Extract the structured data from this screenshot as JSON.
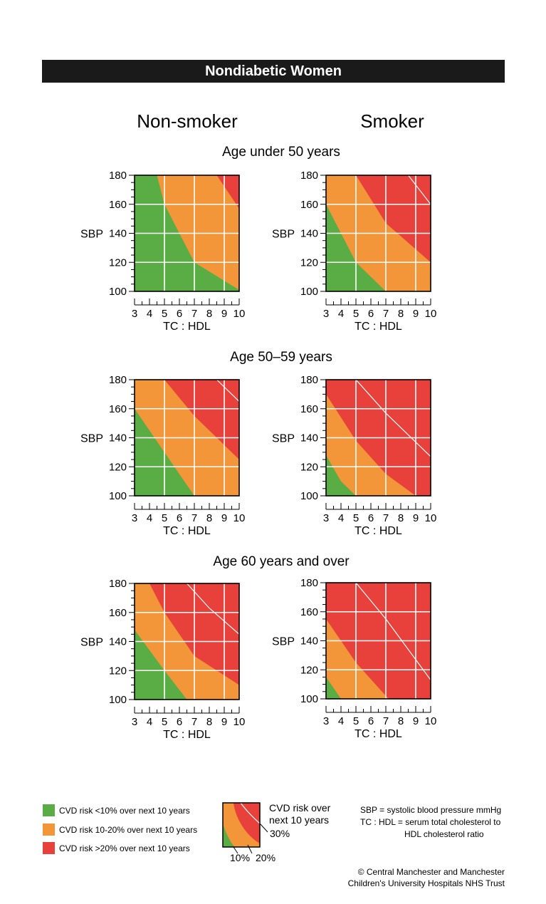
{
  "title": "Nondiabetic Women",
  "columns": [
    "Non-smoker",
    "Smoker"
  ],
  "colors": {
    "low": "#5aac44",
    "mid": "#f39539",
    "high": "#e8403a",
    "banner": "#1a1a1a"
  },
  "chart_data": [
    {
      "type": "heatmap",
      "section": "Age under 50 years",
      "smoker": "Non-smoker",
      "xlabel": "TC : HDL",
      "ylabel": "SBP",
      "xlim": [
        3,
        10
      ],
      "ylim": [
        100,
        180
      ],
      "xticks": [
        3,
        4,
        5,
        6,
        7,
        8,
        9,
        10
      ],
      "yticks": [
        100,
        120,
        140,
        160,
        180
      ],
      "curves": {
        "c10": [
          [
            4.5,
            180
          ],
          [
            5,
            160
          ],
          [
            7,
            120
          ],
          [
            10,
            101
          ]
        ],
        "c20": [
          [
            8.5,
            180
          ],
          [
            10,
            157
          ]
        ],
        "c30": []
      }
    },
    {
      "type": "heatmap",
      "section": "Age under 50 years",
      "smoker": "Smoker",
      "xlabel": "TC : HDL",
      "ylabel": "SBP",
      "xlim": [
        3,
        10
      ],
      "ylim": [
        100,
        180
      ],
      "xticks": [
        3,
        4,
        5,
        6,
        7,
        8,
        9,
        10
      ],
      "yticks": [
        100,
        120,
        140,
        160,
        180
      ],
      "curves": {
        "c10": [
          [
            3,
            160
          ],
          [
            5,
            120
          ],
          [
            7,
            100
          ]
        ],
        "c20": [
          [
            5,
            180
          ],
          [
            7,
            147
          ],
          [
            10,
            120
          ]
        ],
        "c30": [
          [
            8.5,
            180
          ],
          [
            10,
            160
          ]
        ]
      }
    },
    {
      "type": "heatmap",
      "section": "Age 50–59 years",
      "smoker": "Non-smoker",
      "xlabel": "TC : HDL",
      "ylabel": "SBP",
      "xlim": [
        3,
        10
      ],
      "ylim": [
        100,
        180
      ],
      "xticks": [
        3,
        4,
        5,
        6,
        7,
        8,
        9,
        10
      ],
      "yticks": [
        100,
        120,
        140,
        160,
        180
      ],
      "curves": {
        "c10": [
          [
            3,
            160
          ],
          [
            5,
            130
          ],
          [
            7,
            100
          ]
        ],
        "c20": [
          [
            5,
            180
          ],
          [
            7,
            155
          ],
          [
            10,
            125
          ]
        ],
        "c30": [
          [
            8.5,
            180
          ],
          [
            10,
            165
          ]
        ]
      }
    },
    {
      "type": "heatmap",
      "section": "Age 50–59 years",
      "smoker": "Smoker",
      "xlabel": "TC : HDL",
      "ylabel": "SBP",
      "xlim": [
        3,
        10
      ],
      "ylim": [
        100,
        180
      ],
      "xticks": [
        3,
        4,
        5,
        6,
        7,
        8,
        9,
        10
      ],
      "yticks": [
        100,
        120,
        140,
        160,
        180
      ],
      "curves": {
        "c10": [
          [
            3,
            128
          ],
          [
            4,
            110
          ],
          [
            5,
            100
          ]
        ],
        "c20": [
          [
            3,
            170
          ],
          [
            5,
            138
          ],
          [
            7,
            115
          ],
          [
            9,
            100
          ]
        ],
        "c30": [
          [
            5,
            180
          ],
          [
            7,
            157
          ],
          [
            10,
            127
          ]
        ]
      }
    },
    {
      "type": "heatmap",
      "section": "Age 60 years and over",
      "smoker": "Non-smoker",
      "xlabel": "TC : HDL",
      "ylabel": "SBP",
      "xlim": [
        3,
        10
      ],
      "ylim": [
        100,
        180
      ],
      "xticks": [
        3,
        4,
        5,
        6,
        7,
        8,
        9,
        10
      ],
      "yticks": [
        100,
        120,
        140,
        160,
        180
      ],
      "curves": {
        "c10": [
          [
            3,
            148
          ],
          [
            5,
            120
          ],
          [
            6.5,
            100
          ]
        ],
        "c20": [
          [
            4,
            180
          ],
          [
            5,
            160
          ],
          [
            7,
            130
          ],
          [
            10,
            110
          ]
        ],
        "c30": [
          [
            6.5,
            180
          ],
          [
            8,
            163
          ],
          [
            10,
            145
          ]
        ]
      }
    },
    {
      "type": "heatmap",
      "section": "Age 60 years and over",
      "smoker": "Smoker",
      "xlabel": "TC : HDL",
      "ylabel": "SBP",
      "xlim": [
        3,
        10
      ],
      "ylim": [
        100,
        180
      ],
      "xticks": [
        3,
        4,
        5,
        6,
        7,
        8,
        9,
        10
      ],
      "yticks": [
        100,
        120,
        140,
        160,
        180
      ],
      "curves": {
        "c10": [
          [
            3,
            115
          ],
          [
            4,
            100
          ]
        ],
        "c20": [
          [
            3,
            155
          ],
          [
            5,
            125
          ],
          [
            7,
            102
          ],
          [
            7.2,
            100
          ]
        ],
        "c30": [
          [
            5,
            180
          ],
          [
            7,
            155
          ],
          [
            10,
            113
          ]
        ]
      }
    }
  ],
  "legend": {
    "items": [
      {
        "label": "CVD risk <10% over next 10 years",
        "level": "low"
      },
      {
        "label": "CVD risk 10-20% over next 10 years",
        "level": "mid"
      },
      {
        "label": "CVD risk >20% over next 10 years",
        "level": "high"
      }
    ],
    "key_text_1": "CVD risk over",
    "key_text_2": "next 10 years",
    "label_30": "30%",
    "label_10": "10%",
    "label_20": "20%"
  },
  "definitions": {
    "sbp": "SBP = systolic blood pressure mmHg",
    "tc_line1": "TC : HDL = serum total cholesterol to",
    "tc_line2": "HDL cholesterol ratio"
  },
  "copyright": {
    "line1": "© Central Manchester and Manchester",
    "line2": "Children's University Hospitals NHS Trust"
  }
}
